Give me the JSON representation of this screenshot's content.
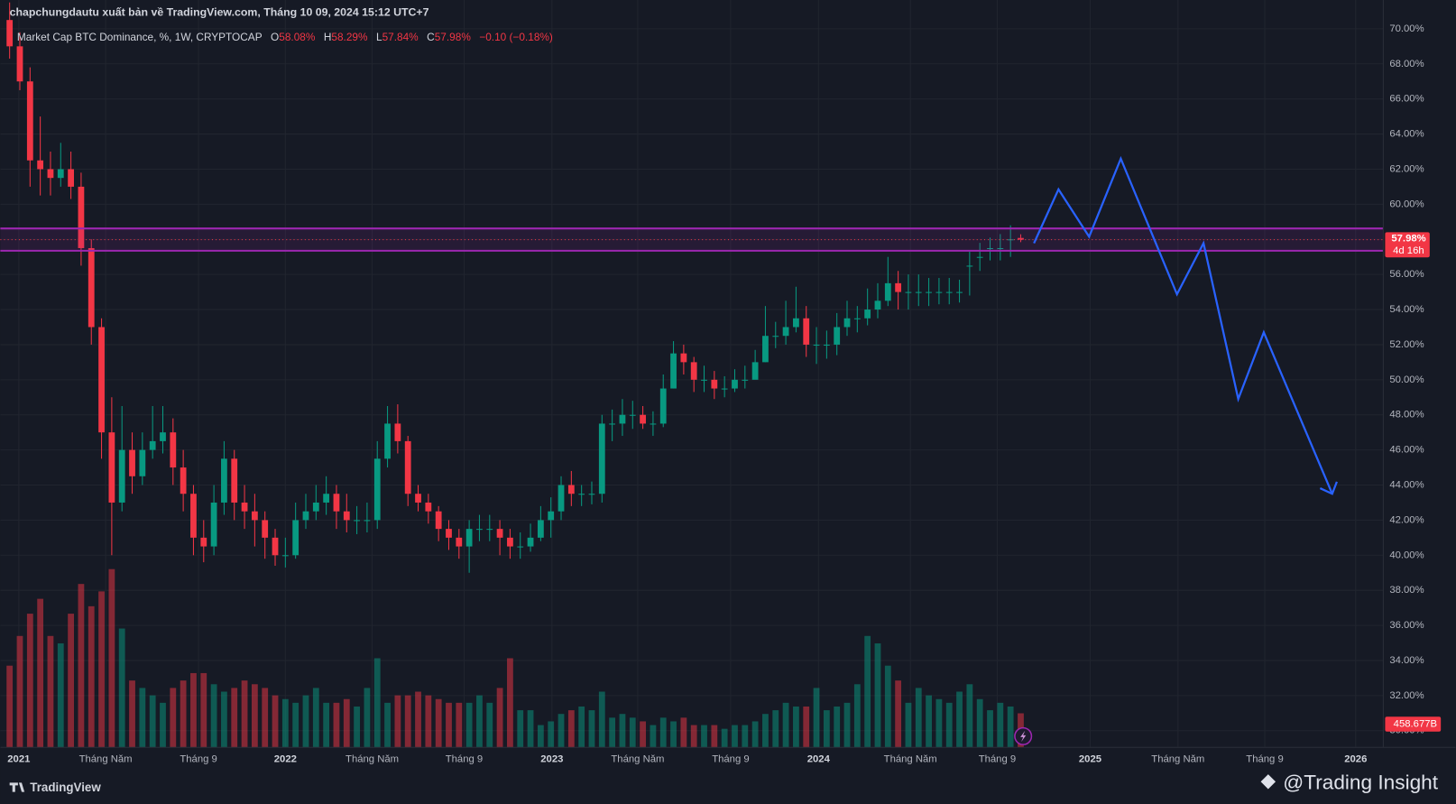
{
  "publisher": "chapchungdautu xuất bản về TradingView.com, Tháng 10 09, 2024 15:12 UTC+7",
  "watermark": "@Trading Insight",
  "brand": "TradingView",
  "chart_data": {
    "type": "candlestick",
    "title": "Market Cap BTC Dominance, %, 1W, CRYPTOCAP",
    "ohlc_header": [
      "O",
      "58.08%",
      "H",
      "58.29%",
      "L",
      "57.84%",
      "C",
      "57.98%",
      "−0.10 (−0.18%)"
    ],
    "up_color": "#089981",
    "down_color": "#f23645",
    "open": [
      70.5,
      69,
      67,
      62.5,
      62,
      61.5,
      62,
      61,
      57.5,
      53,
      47,
      43,
      46,
      44.5,
      46,
      46.5,
      47,
      45,
      43.5,
      41,
      40.5,
      43,
      45.5,
      43,
      42.5,
      42,
      41,
      40,
      40,
      42,
      42.5,
      43,
      43.5,
      42.5,
      42,
      42,
      42,
      45.5,
      47.5,
      46.5,
      43.5,
      43,
      42.5,
      41.5,
      41,
      40.5,
      41.5,
      41.5,
      41.5,
      41,
      40.5,
      40.5,
      41,
      42,
      42.5,
      44,
      43.5,
      43.5,
      43.5,
      47.5,
      47.5,
      48,
      48,
      47.5,
      47.5,
      49.5,
      51.5,
      51,
      50,
      50,
      49.5,
      49.5,
      50,
      50,
      51,
      52.5,
      52.5,
      53,
      53.5,
      52,
      52,
      52,
      53,
      53.5,
      53.5,
      54,
      54.5,
      55.5,
      55,
      55,
      55,
      55,
      55,
      55,
      56.5,
      57,
      57.5,
      57.5,
      58,
      58.08
    ],
    "high": [
      71.5,
      69.8,
      67.8,
      65,
      63,
      63.5,
      63,
      61.8,
      58,
      53.5,
      49,
      48.5,
      47,
      47,
      48.5,
      48.5,
      47.8,
      46,
      44,
      42,
      44,
      46.5,
      46,
      44,
      43.5,
      42.5,
      41.5,
      41,
      43,
      43.5,
      44,
      44.5,
      44,
      43.5,
      42.8,
      43,
      46.5,
      48.5,
      48.6,
      46.8,
      44,
      43.5,
      42.8,
      42,
      41.5,
      42,
      42.3,
      42.3,
      42,
      41.5,
      41.3,
      41.8,
      42.8,
      43.3,
      44.5,
      44.8,
      44,
      44.2,
      48,
      48.3,
      48.9,
      48.8,
      48.5,
      48.2,
      50.3,
      52.2,
      52,
      51.3,
      50.8,
      50.5,
      50.2,
      50.6,
      50.8,
      51.7,
      54.2,
      53.3,
      54.5,
      55.3,
      54.2,
      53,
      52.8,
      53.8,
      54.5,
      54.2,
      55.2,
      55.5,
      57,
      56.2,
      56,
      56,
      55.8,
      55.8,
      55.8,
      55.7,
      57.3,
      57.8,
      58.1,
      58.3,
      58.8,
      58.29
    ],
    "low": [
      68.3,
      66.5,
      61,
      60.5,
      60.5,
      61,
      60.3,
      56.5,
      52,
      45.5,
      40,
      42.5,
      43.5,
      44,
      45.5,
      45.8,
      44,
      42.5,
      40,
      39.6,
      40,
      42.3,
      42,
      41.5,
      40.5,
      39.8,
      39.4,
      39.3,
      39.8,
      41.5,
      42,
      42.3,
      41.5,
      41.3,
      41.2,
      41.3,
      41.5,
      45,
      45.8,
      42.8,
      42.5,
      41.8,
      40.8,
      40.3,
      39.8,
      39,
      40.8,
      40.8,
      40,
      39.8,
      39.8,
      40.2,
      40.8,
      41,
      42,
      42.8,
      42.8,
      42.9,
      43,
      46.5,
      46.8,
      47.2,
      47.2,
      46.8,
      47.3,
      49.5,
      50.3,
      49.3,
      49.3,
      48.9,
      49,
      49.3,
      49.5,
      50.2,
      51,
      51.8,
      52,
      52.7,
      51.3,
      50.9,
      51.2,
      51.4,
      52.5,
      52.7,
      53.1,
      53.5,
      54.2,
      54,
      54,
      54.2,
      54.2,
      54.3,
      54.3,
      54.4,
      54.8,
      56.2,
      56.8,
      56.8,
      57,
      57.84
    ],
    "close": [
      69,
      67,
      62.5,
      62,
      61.5,
      62,
      61,
      57.5,
      53,
      47,
      43,
      46,
      44.5,
      46,
      46.5,
      47,
      45,
      43.5,
      41,
      40.5,
      43,
      45.5,
      43,
      42.5,
      42,
      41,
      40,
      40,
      42,
      42.5,
      43,
      43.5,
      42.5,
      42,
      42,
      42,
      45.5,
      47.5,
      46.5,
      43.5,
      43,
      42.5,
      41.5,
      41,
      40.5,
      41.5,
      41.5,
      41.5,
      41,
      40.5,
      40.5,
      41,
      42,
      42.5,
      44,
      43.5,
      43.5,
      43.5,
      47.5,
      47.5,
      48,
      48,
      47.5,
      47.5,
      49.5,
      51.5,
      51,
      50,
      50,
      49.5,
      49.5,
      50,
      50,
      51,
      52.5,
      52.5,
      53,
      53.5,
      52,
      52,
      52,
      53,
      53.5,
      53.5,
      54,
      54.5,
      55.5,
      55,
      55,
      55,
      55,
      55,
      55,
      55,
      56.5,
      57,
      57.5,
      57.5,
      58,
      57.98
    ],
    "volume": [
      1100,
      1500,
      1800,
      2000,
      1500,
      1400,
      1800,
      2200,
      1900,
      2100,
      2400,
      1600,
      900,
      800,
      700,
      600,
      800,
      900,
      1000,
      1000,
      850,
      750,
      800,
      900,
      850,
      800,
      700,
      650,
      600,
      700,
      800,
      600,
      600,
      650,
      550,
      800,
      1200,
      600,
      700,
      700,
      750,
      700,
      650,
      600,
      600,
      600,
      700,
      600,
      800,
      1200,
      500,
      500,
      300,
      350,
      450,
      500,
      550,
      500,
      750,
      400,
      450,
      400,
      350,
      300,
      400,
      350,
      400,
      300,
      300,
      300,
      250,
      300,
      300,
      350,
      450,
      500,
      600,
      550,
      550,
      800,
      500,
      550,
      600,
      850,
      1500,
      1400,
      1100,
      900,
      600,
      800,
      700,
      650,
      600,
      750,
      850,
      650,
      500,
      600,
      550,
      458.677
    ],
    "last_close_label": "57.98%",
    "countdown": "4d 16h",
    "last_volume_label": "458.677B",
    "vlim": [
      0,
      2500
    ],
    "xlim": [
      -0.91,
      134.5
    ],
    "xticks": [
      {
        "value": 0.9,
        "label": "2021"
      },
      {
        "value": 9.4,
        "label": "Tháng Năm"
      },
      {
        "value": 18.5,
        "label": "Tháng 9"
      },
      {
        "value": 27,
        "label": "2022"
      },
      {
        "value": 35.5,
        "label": "Tháng Năm"
      },
      {
        "value": 44.5,
        "label": "Tháng 9"
      },
      {
        "value": 53.1,
        "label": "2023"
      },
      {
        "value": 61.5,
        "label": "Tháng Năm"
      },
      {
        "value": 70.6,
        "label": "Tháng 9"
      },
      {
        "value": 79.2,
        "label": "2024"
      },
      {
        "value": 88.2,
        "label": "Tháng Năm"
      },
      {
        "value": 96.7,
        "label": "Tháng 9"
      },
      {
        "value": 105.8,
        "label": "2025"
      },
      {
        "value": 114.4,
        "label": "Tháng Năm"
      },
      {
        "value": 122.9,
        "label": "Tháng 9"
      },
      {
        "value": 131.8,
        "label": "2026"
      }
    ],
    "ylim": [
      29.05,
      71.64
    ],
    "yticks": [
      {
        "value": 30,
        "label": "30.00%"
      },
      {
        "value": 32,
        "label": "32.00%"
      },
      {
        "value": 34,
        "label": "34.00%"
      },
      {
        "value": 36,
        "label": "36.00%"
      },
      {
        "value": 38,
        "label": "38.00%"
      },
      {
        "value": 40,
        "label": "40.00%"
      },
      {
        "value": 42,
        "label": "42.00%"
      },
      {
        "value": 44,
        "label": "44.00%"
      },
      {
        "value": 46,
        "label": "46.00%"
      },
      {
        "value": 48,
        "label": "48.00%"
      },
      {
        "value": 50,
        "label": "50.00%"
      },
      {
        "value": 52,
        "label": "52.00%"
      },
      {
        "value": 54,
        "label": "54.00%"
      },
      {
        "value": 56,
        "label": "56.00%"
      },
      {
        "value": 58,
        "label": "58.00%"
      },
      {
        "value": 60,
        "label": "60.00%"
      },
      {
        "value": 62,
        "label": "62.00%"
      },
      {
        "value": 64,
        "label": "64.00%"
      },
      {
        "value": 66,
        "label": "66.00%"
      },
      {
        "value": 68,
        "label": "68.00%"
      },
      {
        "value": 70,
        "label": "70.00%"
      }
    ],
    "grid": true,
    "zone": [
      57.35,
      58.62
    ],
    "zone_color": "#9c27b0",
    "projection": {
      "x": [
        100.3,
        102.7,
        105.7,
        108.8,
        114.3,
        116.9,
        120.3,
        122.8,
        129.5
      ],
      "y": [
        57.78,
        60.85,
        58.15,
        62.6,
        54.87,
        57.78,
        48.9,
        52.7,
        43.5
      ],
      "color": "#2962ff"
    }
  }
}
